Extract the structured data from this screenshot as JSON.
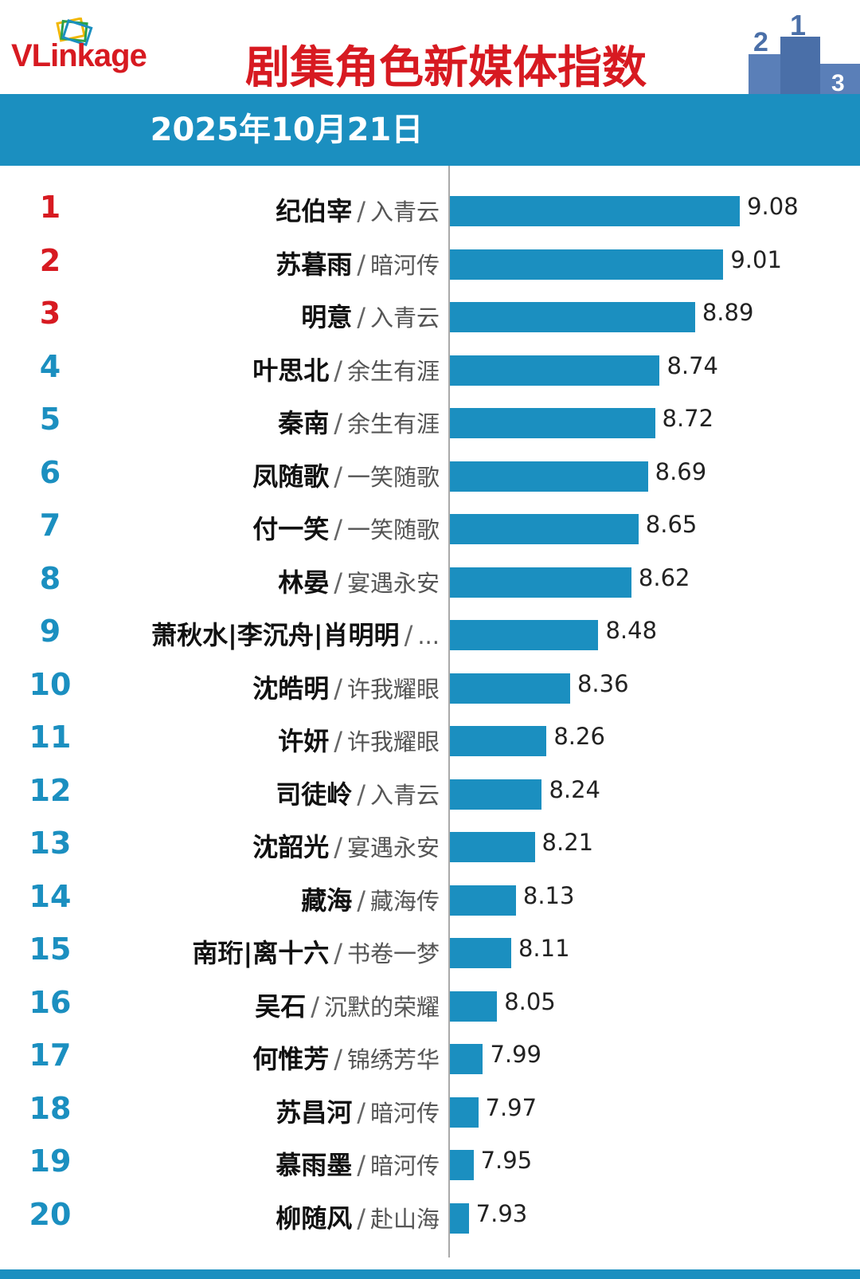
{
  "header": {
    "logo_text_vl": "VLink",
    "logo_text_rest": "age",
    "title": "剧集角色新媒体指数",
    "date": "2025年10月21日",
    "podium_labels": [
      "2",
      "1",
      "3"
    ]
  },
  "colors": {
    "accent": "#1b8fc0",
    "top_rank": "#d71a21",
    "rank": "#1b8fc0",
    "title": "#d71a21"
  },
  "chart_data": {
    "type": "bar",
    "orientation": "horizontal",
    "title": "剧集角色新媒体指数",
    "subtitle": "2025年10月21日",
    "xlim": [
      7.85,
      9.1
    ],
    "ranks": [
      "1",
      "2",
      "3",
      "4",
      "5",
      "6",
      "7",
      "8",
      "9",
      "10",
      "11",
      "12",
      "13",
      "14",
      "15",
      "16",
      "17",
      "18",
      "19",
      "20"
    ],
    "names": [
      "纪伯宰",
      "苏暮雨",
      "明意",
      "叶思北",
      "秦南",
      "凤随歌",
      "付一笑",
      "林晏",
      "萧秋水|李沉舟|肖明明",
      "沈皓明",
      "许妍",
      "司徒岭",
      "沈韶光",
      "藏海",
      "南珩|离十六",
      "吴石",
      "何惟芳",
      "苏昌河",
      "慕雨墨",
      "柳随风"
    ],
    "separators": [
      "/",
      "/",
      "/",
      "/",
      "/",
      "/",
      "/",
      "/",
      "/",
      "/",
      "/",
      "/",
      "/",
      "/",
      "/",
      "/",
      "/",
      "/",
      "/",
      "/"
    ],
    "dramas": [
      "入青云",
      "暗河传",
      "入青云",
      "余生有涯",
      "余生有涯",
      "一笑随歌",
      "一笑随歌",
      "宴遇永安",
      "...",
      "许我耀眼",
      "许我耀眼",
      "入青云",
      "宴遇永安",
      "藏海传",
      "书卷一梦",
      "沉默的荣耀",
      "锦绣芳华",
      "暗河传",
      "暗河传",
      "赴山海"
    ],
    "values": [
      9.08,
      9.01,
      8.89,
      8.74,
      8.72,
      8.69,
      8.65,
      8.62,
      8.48,
      8.36,
      8.26,
      8.24,
      8.21,
      8.13,
      8.11,
      8.05,
      7.99,
      7.97,
      7.95,
      7.93
    ],
    "value_labels": [
      "9.08",
      "9.01",
      "8.89",
      "8.74",
      "8.72",
      "8.69",
      "8.65",
      "8.62",
      "8.48",
      "8.36",
      "8.26",
      "8.24",
      "8.21",
      "8.13",
      "8.11",
      "8.05",
      "7.99",
      "7.97",
      "7.95",
      "7.93"
    ]
  }
}
